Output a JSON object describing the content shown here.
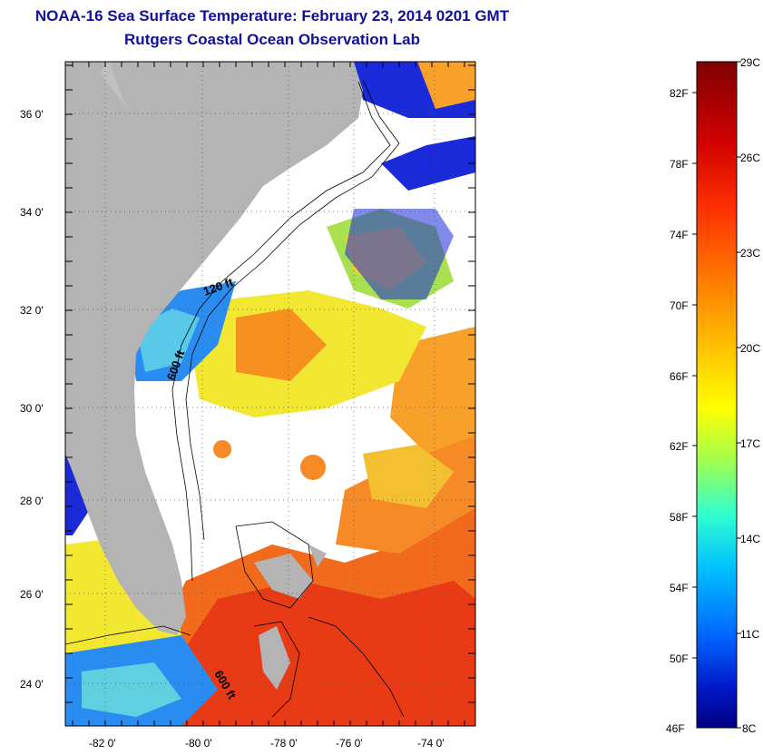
{
  "header": {
    "title": "NOAA-16 Sea Surface Temperature:  February 23, 2014 0201 GMT",
    "subtitle": "Rutgers Coastal Ocean Observation Lab"
  },
  "map": {
    "lat_labels": [
      "36 0'",
      "34 0'",
      "32 0'",
      "30 0'",
      "28 0'",
      "26 0'",
      "24 0'"
    ],
    "lon_labels": [
      "-82 0'",
      "-80 0'",
      "-78 0'",
      "-76 0'",
      "-74 0'"
    ],
    "contour_labels": [
      "120 ft",
      "600 ft",
      "600 ft"
    ],
    "colors": {
      "land": "#b4b4b4",
      "cloud": "#ffffff",
      "warm": "#f26a1c",
      "hot": "#e83a14",
      "mid": "#f7a02a",
      "cool": "#f2e832",
      "cold": "#2a8cf0",
      "coldest": "#1a2ad8"
    }
  },
  "colorbar": {
    "fahrenheit": [
      "82F",
      "78F",
      "74F",
      "70F",
      "66F",
      "62F",
      "58F",
      "54F",
      "50F",
      "46F"
    ],
    "celsius": [
      "29C",
      "26C",
      "23C",
      "20C",
      "17C",
      "14C",
      "11C",
      "8C"
    ],
    "gradient": [
      "#800000",
      "#c80000",
      "#ff2a00",
      "#ff7a00",
      "#ffc000",
      "#ffff00",
      "#a8ff40",
      "#40ffc0",
      "#00c8ff",
      "#0070ff",
      "#0020d0",
      "#000080"
    ]
  }
}
